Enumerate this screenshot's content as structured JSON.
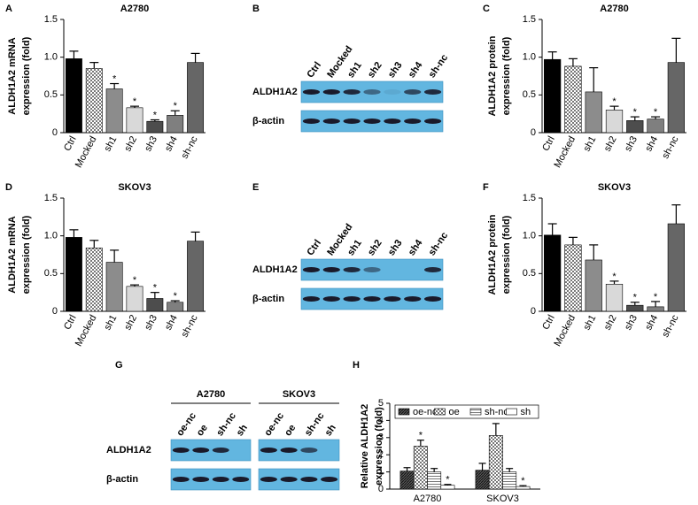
{
  "chart_data": [
    {
      "type": "bar",
      "panel": "A",
      "title": "A2780",
      "ylabel": [
        "ALDH1A2 mRNA",
        "expression (fold)"
      ],
      "categories": [
        "Ctrl",
        "Mocked",
        "sh1",
        "sh2",
        "sh3",
        "sh4",
        "sh-nc"
      ],
      "values": [
        0.98,
        0.85,
        0.58,
        0.33,
        0.15,
        0.23,
        0.93
      ],
      "errors": [
        0.1,
        0.08,
        0.07,
        0.02,
        0.02,
        0.06,
        0.12
      ],
      "significance": [
        null,
        null,
        "*",
        "*",
        "*",
        "*",
        null
      ],
      "fills": [
        "#000000",
        "checker",
        "#8c8c8c",
        "#d9d9d9",
        "#4d4d4d",
        "#7f7f7f",
        "#666666"
      ],
      "ylim": [
        0,
        1.5
      ],
      "yticks": [
        0,
        0.5,
        {
          "value": 1,
          "label": "1.0"
        },
        1.5
      ]
    },
    {
      "type": "blot",
      "panel": "B",
      "groups": [
        {
          "lanes": [
            "Ctrl",
            "Mocked",
            "sh1",
            "sh2",
            "sh3",
            "sh4",
            "sh-nc"
          ]
        }
      ],
      "rows": [
        "ALDH1A2",
        "β-actin"
      ]
    },
    {
      "type": "bar",
      "panel": "C",
      "title": "A2780",
      "ylabel": [
        "ALDH1A2 protein",
        "expression (fold)"
      ],
      "categories": [
        "Ctrl",
        "Mocked",
        "sh1",
        "sh2",
        "sh3",
        "sh4",
        "sh-nc"
      ],
      "values": [
        0.97,
        0.88,
        0.54,
        0.3,
        0.16,
        0.18,
        0.93
      ],
      "errors": [
        0.1,
        0.1,
        0.32,
        0.05,
        0.05,
        0.03,
        0.32
      ],
      "significance": [
        null,
        null,
        null,
        "*",
        "*",
        "*",
        null
      ],
      "fills": [
        "#000000",
        "checker",
        "#8c8c8c",
        "#d9d9d9",
        "#4d4d4d",
        "#7f7f7f",
        "#666666"
      ],
      "ylim": [
        0,
        1.5
      ],
      "yticks": [
        0,
        0.5,
        {
          "value": 1,
          "label": "1.0"
        },
        1.5
      ]
    },
    {
      "type": "bar",
      "panel": "D",
      "title": "SKOV3",
      "ylabel": [
        "ALDH1A2 mRNA",
        "expression (fold)"
      ],
      "categories": [
        "Ctrl",
        "Mocked",
        "sh1",
        "sh2",
        "sh3",
        "sh4",
        "sh-nc"
      ],
      "values": [
        0.98,
        0.84,
        0.65,
        0.33,
        0.17,
        0.12,
        0.93
      ],
      "errors": [
        0.1,
        0.1,
        0.16,
        0.02,
        0.08,
        0.02,
        0.12
      ],
      "significance": [
        null,
        null,
        null,
        "*",
        "*",
        "*",
        null
      ],
      "fills": [
        "#000000",
        "checker",
        "#8c8c8c",
        "#d9d9d9",
        "#4d4d4d",
        "#7f7f7f",
        "#666666"
      ],
      "ylim": [
        0,
        1.5
      ],
      "yticks": [
        0,
        0.5,
        {
          "value": 1,
          "label": "1.0"
        },
        1.5
      ]
    },
    {
      "type": "blot",
      "panel": "E",
      "groups": [
        {
          "lanes": [
            "Ctrl",
            "Mocked",
            "sh1",
            "sh2",
            "sh3",
            "sh4",
            "sh-nc"
          ]
        }
      ],
      "rows": [
        "ALDH1A2",
        "β-actin"
      ]
    },
    {
      "type": "bar",
      "panel": "F",
      "title": "SKOV3",
      "ylabel": [
        "ALDH1A2 protein",
        "expression (fold)"
      ],
      "categories": [
        "Ctrl",
        "Mocked",
        "sh1",
        "sh2",
        "sh3",
        "sh4",
        "sh-nc"
      ],
      "values": [
        1.01,
        0.88,
        0.68,
        0.36,
        0.08,
        0.06,
        1.16
      ],
      "errors": [
        0.15,
        0.1,
        0.2,
        0.04,
        0.04,
        0.07,
        0.25
      ],
      "significance": [
        null,
        null,
        null,
        "*",
        "*",
        "*",
        null
      ],
      "fills": [
        "#000000",
        "checker",
        "#8c8c8c",
        "#d9d9d9",
        "#4d4d4d",
        "#7f7f7f",
        "#666666"
      ],
      "ylim": [
        0,
        1.5
      ],
      "yticks": [
        0,
        0.5,
        {
          "value": 1,
          "label": "1.0"
        },
        1.5
      ]
    },
    {
      "type": "blot",
      "panel": "G",
      "groups": [
        {
          "name": "A2780",
          "lanes": [
            "oe-nc",
            "oe",
            "sh-nc",
            "sh"
          ]
        },
        {
          "name": "SKOV3",
          "lanes": [
            "oe-nc",
            "oe",
            "sh-nc",
            "sh"
          ]
        }
      ],
      "rows": [
        "ALDH1A2",
        "β-actin"
      ]
    },
    {
      "type": "bar",
      "panel": "H",
      "ylabel": [
        "Relative ALDH1A2",
        "expression (fold)"
      ],
      "categories": [
        "A2780",
        "SKOV3"
      ],
      "series": [
        {
          "name": "oe-nc",
          "fill": "hatch",
          "values": [
            1.05,
            1.1
          ],
          "errors": [
            0.2,
            0.4
          ],
          "significance": [
            null,
            null
          ]
        },
        {
          "name": "oe",
          "fill": "checker",
          "values": [
            2.5,
            3.12
          ],
          "errors": [
            0.35,
            0.7
          ],
          "significance": [
            "*",
            "*"
          ]
        },
        {
          "name": "sh-nc",
          "fill": "hlines",
          "values": [
            1.0,
            1.0
          ],
          "errors": [
            0.2,
            0.2
          ],
          "significance": [
            null,
            null
          ]
        },
        {
          "name": "sh",
          "fill": "#ffffff",
          "values": [
            0.22,
            0.15
          ],
          "errors": [
            0.05,
            0.05
          ],
          "significance": [
            "*",
            "*"
          ]
        }
      ],
      "legend": "top",
      "ylim": [
        0,
        5
      ],
      "yticks": [
        0,
        1,
        2,
        3,
        4,
        5
      ]
    }
  ]
}
